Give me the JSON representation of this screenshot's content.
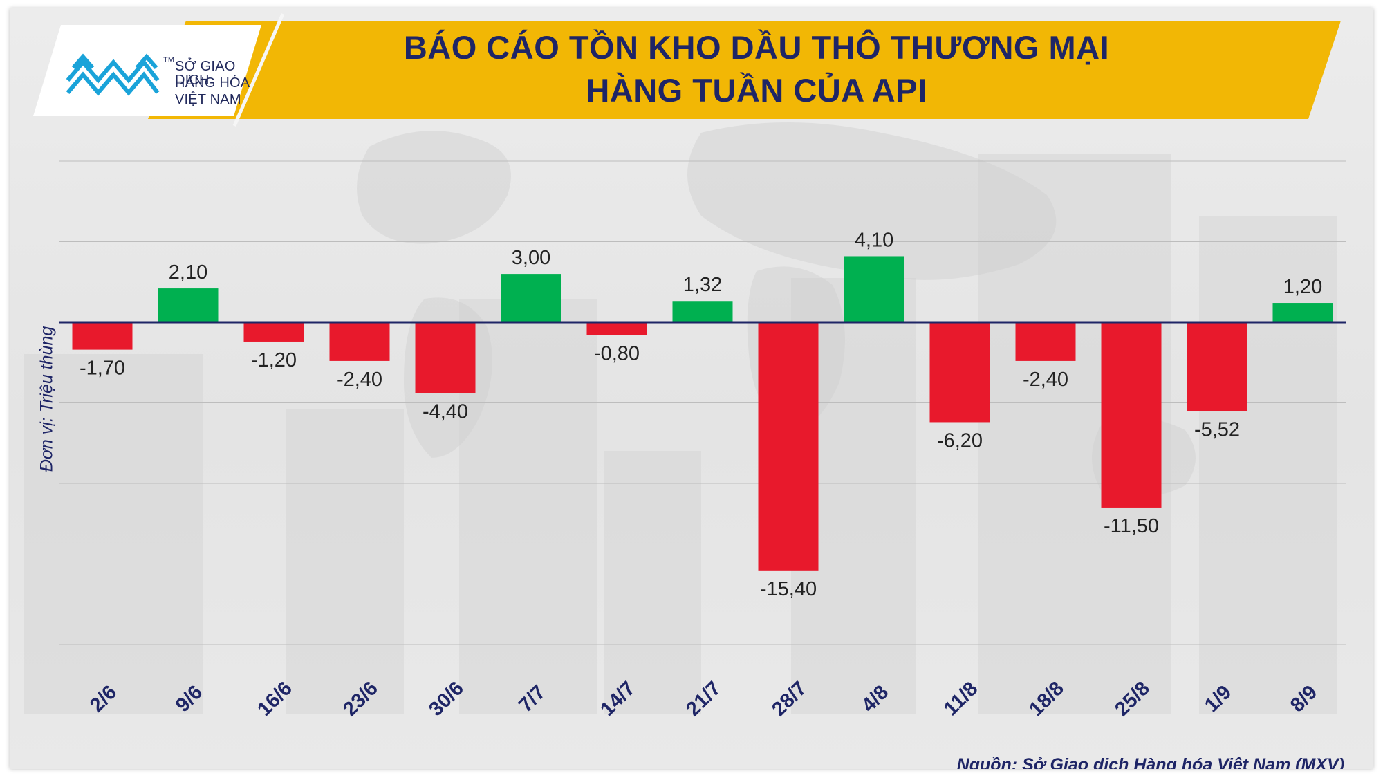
{
  "header": {
    "logo_lines": [
      "SỞ GIAO DỊCH",
      "HÀNG HÓA",
      "VIỆT NAM"
    ],
    "logo_mark": "TM",
    "title_lines": [
      "BÁO CÁO TỒN KHO DẦU THÔ THƯƠNG MẠI",
      "HÀNG TUẦN CỦA API"
    ]
  },
  "colors": {
    "banner": "#f2b705",
    "positive": "#00b050",
    "negative": "#e8192c",
    "axis": "#1e2566",
    "text_dark": "#1e2566"
  },
  "chart_data": {
    "type": "bar",
    "title": "BÁO CÁO TỒN KHO DẦU THÔ THƯƠNG MẠI HÀNG TUẦN CỦA API",
    "ylabel": "Đơn vị: Triệu thùng",
    "xlabel": "",
    "categories": [
      "2/6",
      "9/6",
      "16/6",
      "23/6",
      "30/6",
      "7/7",
      "14/7",
      "21/7",
      "28/7",
      "4/8",
      "11/8",
      "18/8",
      "25/8",
      "1/9",
      "8/9"
    ],
    "values": [
      -1.7,
      2.1,
      -1.2,
      -2.4,
      -4.4,
      3.0,
      -0.8,
      1.32,
      -15.4,
      4.1,
      -6.2,
      -2.4,
      -11.5,
      -5.52,
      1.2
    ],
    "data_labels": [
      "-1,70",
      "2,10",
      "-1,20",
      "-2,40",
      "-4,40",
      "3,00",
      "-0,80",
      "1,32",
      "-15,40",
      "4,10",
      "-6,20",
      "-2,40",
      "-11,50",
      "-5,52",
      "1,20"
    ],
    "ylim": [
      -20,
      10
    ],
    "gridlines": [
      10,
      5,
      -5,
      -10,
      -15,
      -20
    ],
    "grid": true,
    "legend": "none"
  },
  "footer": {
    "source": "Nguồn: Sở Giao dịch Hàng hóa Việt Nam (MXV)"
  }
}
